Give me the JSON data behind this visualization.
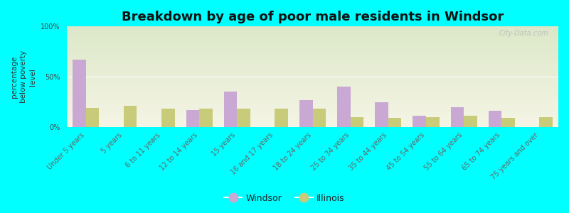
{
  "title": "Breakdown by age of poor male residents in Windsor",
  "ylabel": "percentage\nbelow poverty\nlevel",
  "categories": [
    "Under 5 years",
    "5 years",
    "6 to 11 years",
    "12 to 14 years",
    "15 years",
    "16 and 17 years",
    "18 to 24 years",
    "25 to 34 years",
    "35 to 44 years",
    "45 to 54 years",
    "55 to 64 years",
    "65 to 74 years",
    "75 years and over"
  ],
  "windsor_values": [
    67,
    0,
    0,
    17,
    35,
    0,
    27,
    40,
    25,
    11,
    20,
    16,
    0
  ],
  "illinois_values": [
    19,
    21,
    18,
    18,
    18,
    18,
    18,
    10,
    9,
    10,
    11,
    9,
    10
  ],
  "windsor_color": "#c9a8d4",
  "illinois_color": "#c8cc7a",
  "background_color": "#00ffff",
  "plot_bg_top": "#dce8c8",
  "plot_bg_bottom": "#f5f5e5",
  "yticks": [
    0,
    50,
    100
  ],
  "ytick_labels": [
    "0%",
    "50%",
    "100%"
  ],
  "bar_width": 0.35,
  "title_fontsize": 13,
  "tick_label_fontsize": 7,
  "ylabel_fontsize": 7.5,
  "watermark": "City-Data.com"
}
